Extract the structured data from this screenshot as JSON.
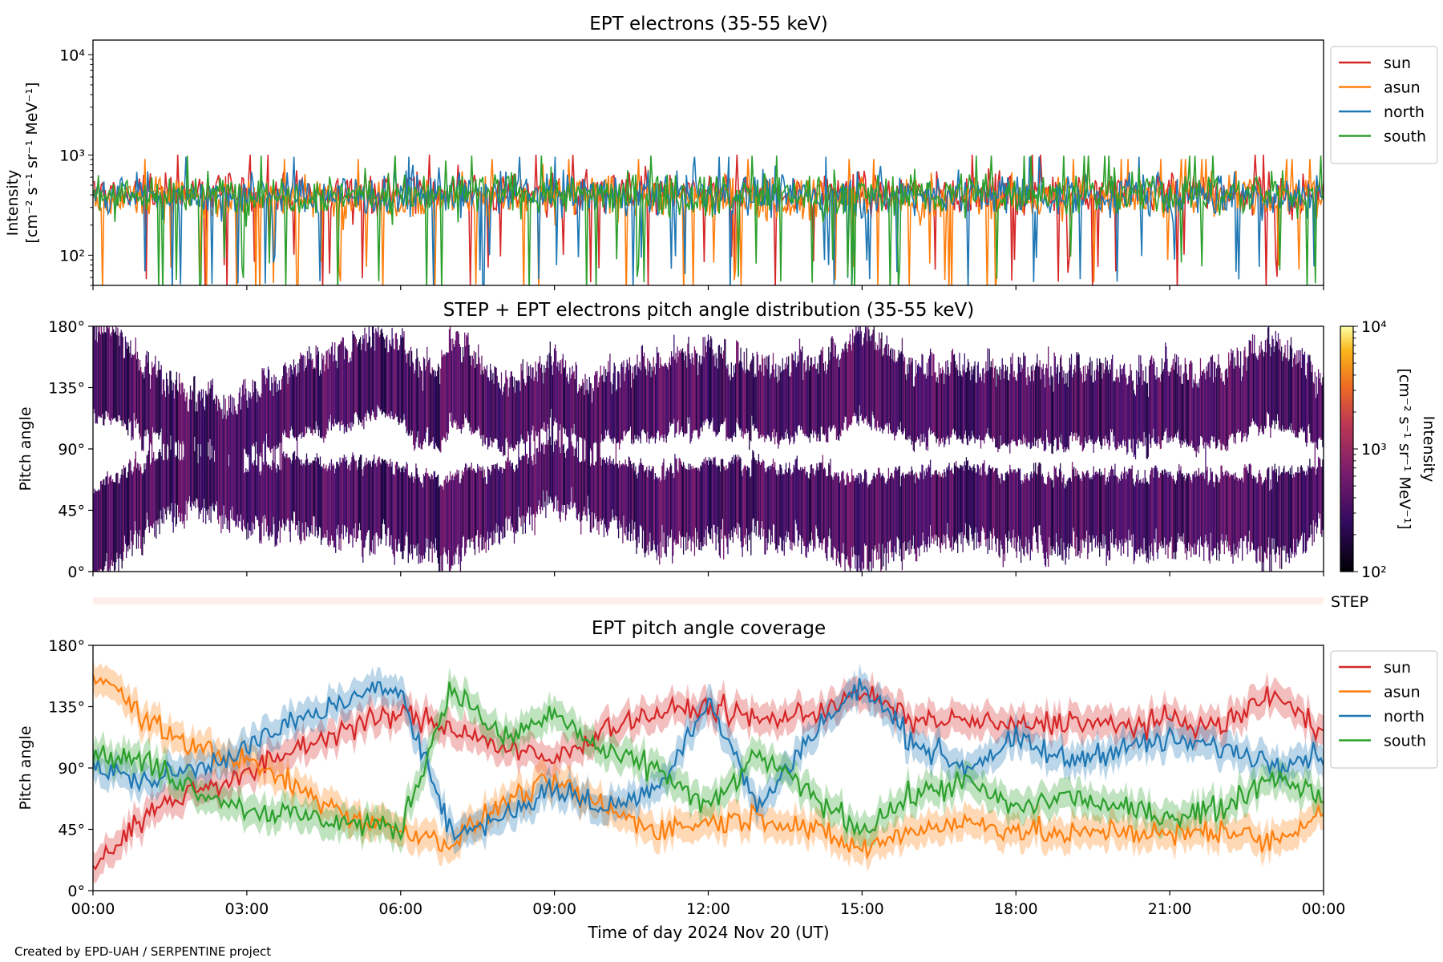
{
  "footer": {
    "credit": "Created by EPD-UAH / SERPENTINE project"
  },
  "colors": {
    "sun": "#d62728",
    "asun": "#ff7f0e",
    "north": "#1f77b4",
    "south": "#2ca02c",
    "step_strip": "#fdf0ea"
  },
  "chart_data": [
    {
      "type": "line",
      "title": "EPT electrons (35-55 keV)",
      "ylabel": "Intensity",
      "yunits": "[cm⁻² s⁻¹ sr⁻¹ MeV⁻¹]",
      "yscale": "log",
      "ylim": [
        50,
        14000
      ],
      "yticks": [
        {
          "value": 100,
          "label": "10²"
        },
        {
          "value": 1000,
          "label": "10³"
        },
        {
          "value": 10000,
          "label": "10⁴"
        }
      ],
      "xlim_hours": [
        0,
        24
      ],
      "legend": "outside-right",
      "series": [
        {
          "name": "sun",
          "color": "#d62728",
          "typical": 420
        },
        {
          "name": "asun",
          "color": "#ff7f0e",
          "typical": 380
        },
        {
          "name": "north",
          "color": "#1f77b4",
          "typical": 400
        },
        {
          "name": "south",
          "color": "#2ca02c",
          "typical": 410
        }
      ]
    },
    {
      "type": "heatmap",
      "title": "STEP + EPT electrons pitch angle distribution (35-55 keV)",
      "ylabel": "Pitch angle",
      "ylim": [
        0,
        180
      ],
      "yticks": [
        {
          "value": 0,
          "label": "0°"
        },
        {
          "value": 45,
          "label": "45°"
        },
        {
          "value": 90,
          "label": "90°"
        },
        {
          "value": 135,
          "label": "135°"
        },
        {
          "value": 180,
          "label": "180°"
        }
      ],
      "colorbar": {
        "label": "Intensity",
        "units": "[cm⁻² s⁻¹ sr⁻¹ MeV⁻¹]",
        "scale": "log",
        "range": [
          100,
          10000
        ],
        "ticks": [
          {
            "value": 100,
            "label": "10²"
          },
          {
            "value": 1000,
            "label": "10³"
          },
          {
            "value": 10000,
            "label": "10⁴"
          }
        ]
      },
      "step_label": "STEP"
    },
    {
      "type": "line",
      "title": "EPT pitch angle coverage",
      "ylabel": "Pitch angle",
      "ylim": [
        0,
        180
      ],
      "yticks": [
        {
          "value": 0,
          "label": "0°"
        },
        {
          "value": 45,
          "label": "45°"
        },
        {
          "value": 90,
          "label": "90°"
        },
        {
          "value": 135,
          "label": "135°"
        },
        {
          "value": 180,
          "label": "180°"
        }
      ],
      "xlabel": "Time of day 2024 Nov 20 (UT)",
      "xlim_hours": [
        0,
        24
      ],
      "xticks": [
        {
          "value": 0,
          "label": "00:00"
        },
        {
          "value": 3,
          "label": "03:00"
        },
        {
          "value": 6,
          "label": "06:00"
        },
        {
          "value": 9,
          "label": "09:00"
        },
        {
          "value": 12,
          "label": "12:00"
        },
        {
          "value": 15,
          "label": "15:00"
        },
        {
          "value": 18,
          "label": "18:00"
        },
        {
          "value": 21,
          "label": "21:00"
        },
        {
          "value": 24,
          "label": "00:00"
        }
      ],
      "legend": "outside-right",
      "series": [
        {
          "name": "sun",
          "color": "#d62728",
          "x": [
            0,
            1,
            2,
            3,
            4,
            5,
            6,
            7,
            8,
            9,
            10,
            11,
            12,
            13,
            14,
            15,
            16,
            17,
            18,
            19,
            20,
            21,
            22,
            23,
            24
          ],
          "y": [
            18,
            55,
            75,
            85,
            105,
            120,
            130,
            120,
            105,
            95,
            120,
            130,
            135,
            125,
            130,
            145,
            125,
            125,
            120,
            125,
            120,
            125,
            120,
            145,
            115
          ]
        },
        {
          "name": "asun",
          "color": "#ff7f0e",
          "x": [
            0,
            1,
            2,
            3,
            4,
            5,
            6,
            7,
            8,
            9,
            10,
            11,
            12,
            13,
            14,
            15,
            16,
            17,
            18,
            19,
            20,
            21,
            22,
            23,
            24
          ],
          "y": [
            165,
            125,
            105,
            95,
            75,
            55,
            45,
            35,
            65,
            80,
            60,
            45,
            50,
            55,
            45,
            30,
            45,
            50,
            45,
            40,
            45,
            40,
            45,
            35,
            60
          ]
        },
        {
          "name": "north",
          "color": "#1f77b4",
          "x": [
            0,
            1,
            2,
            3,
            4,
            5,
            6,
            7,
            8,
            9,
            10,
            11,
            12,
            13,
            14,
            15,
            16,
            17,
            18,
            19,
            20,
            21,
            22,
            23,
            24
          ],
          "y": [
            90,
            80,
            90,
            105,
            125,
            140,
            150,
            40,
            55,
            75,
            60,
            75,
            140,
            60,
            115,
            150,
            110,
            90,
            110,
            95,
            105,
            110,
            105,
            95,
            100
          ]
        },
        {
          "name": "south",
          "color": "#2ca02c",
          "x": [
            0,
            1,
            2,
            3,
            4,
            5,
            6,
            7,
            8,
            9,
            10,
            11,
            12,
            13,
            14,
            15,
            16,
            17,
            18,
            19,
            20,
            21,
            22,
            23,
            24
          ],
          "y": [
            100,
            95,
            75,
            60,
            55,
            50,
            45,
            150,
            110,
            130,
            100,
            90,
            60,
            100,
            70,
            45,
            70,
            80,
            60,
            70,
            60,
            55,
            60,
            85,
            70
          ]
        }
      ]
    }
  ]
}
